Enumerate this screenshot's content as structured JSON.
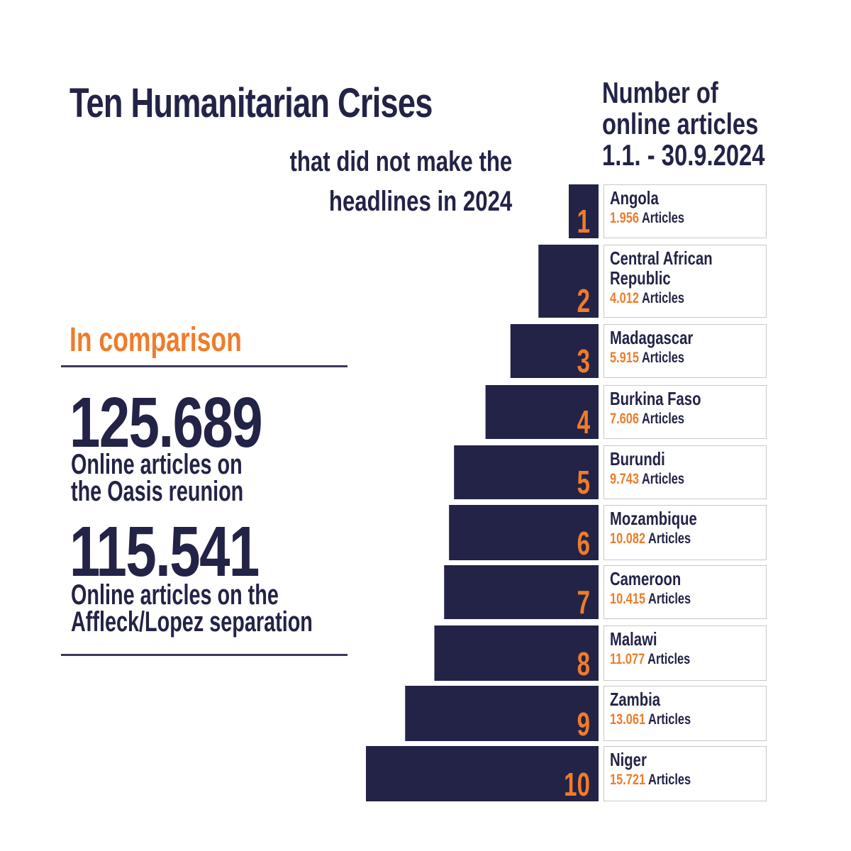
{
  "header": {
    "title": "Ten Humanitarian Crises",
    "subtitle_line1": "that did not make the",
    "subtitle_line2": "headlines in 2024",
    "ranking_heading": [
      "Number of",
      "online articles",
      "1.1. - 30.9.2024"
    ]
  },
  "comparison": {
    "title": "In comparison",
    "items": [
      {
        "value": "125.689",
        "desc_line1": "Online articles on",
        "desc_line2": "the Oasis reunion"
      },
      {
        "value": "115.541",
        "desc_line1": "Online articles on the",
        "desc_line2": "Affleck/Lopez separation"
      }
    ]
  },
  "colors": {
    "navy": "#232347",
    "orange": "#ee7c2b",
    "border": "#c8c8c8"
  },
  "chart_data": {
    "type": "bar",
    "orientation": "horizontal",
    "title": "Number of online articles 1.1. - 30.9.2024",
    "unit_label": "Articles",
    "ranks": [
      "1",
      "2",
      "3",
      "4",
      "5",
      "6",
      "7",
      "8",
      "9",
      "10"
    ],
    "categories": [
      "Angola",
      "Central African Republic",
      "Madagascar",
      "Burkina Faso",
      "Burundi",
      "Mozambique",
      "Cameroon",
      "Malawi",
      "Zambia",
      "Niger"
    ],
    "category_lines": [
      [
        "Angola"
      ],
      [
        "Central African",
        "Republic"
      ],
      [
        "Madagascar"
      ],
      [
        "Burkina Faso"
      ],
      [
        "Burundi"
      ],
      [
        "Mozambique"
      ],
      [
        "Cameroon"
      ],
      [
        "Malawi"
      ],
      [
        "Zambia"
      ],
      [
        "Niger"
      ]
    ],
    "value_labels": [
      "1.956",
      "4.012",
      "5.915",
      "7.606",
      "9.743",
      "10.082",
      "10.415",
      "11.077",
      "13.061",
      "15.721"
    ],
    "values": [
      1956,
      4012,
      5915,
      7606,
      9743,
      10082,
      10415,
      11077,
      13061,
      15721
    ]
  }
}
